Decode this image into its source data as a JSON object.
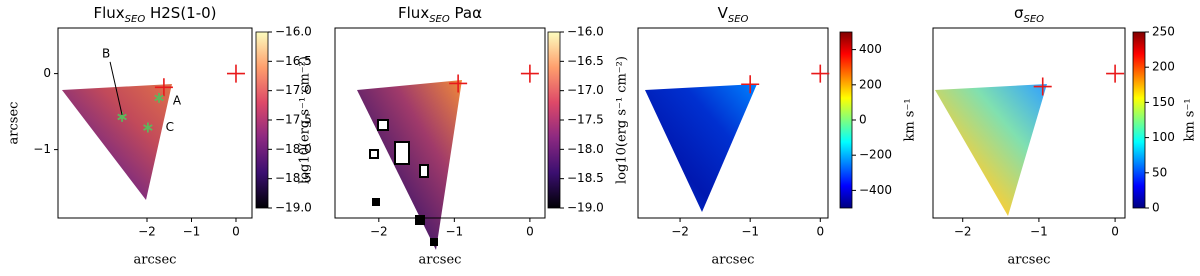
{
  "chart_data": [
    {
      "type": "heatmap",
      "title": "Flux",
      "title_sub": "SEO",
      "title_suffix": " H2S(1-0)",
      "xlabel": "arcsec",
      "ylabel": "arcsec",
      "xlim": [
        -4.0,
        0.36
      ],
      "ylim": [
        -1.9,
        0.6
      ],
      "xticks": [
        {
          "value": -2,
          "label": "−2"
        },
        {
          "value": -1,
          "label": "−1"
        },
        0
      ],
      "yticks": [
        {
          "value": -1,
          "label": "−1"
        },
        0
      ],
      "colorbar": {
        "clim": [
          -19.0,
          -16.0
        ],
        "label": "log10(erg s⁻¹ cm⁻²)",
        "ticks": [
          {
            "value": -16.0,
            "label": "−16.0"
          },
          {
            "value": -16.5,
            "label": "−16.5"
          },
          {
            "value": -17.0,
            "label": "−17.0"
          },
          {
            "value": -17.5,
            "label": "−17.5"
          },
          {
            "value": -18.0,
            "label": "−18.0"
          },
          {
            "value": -18.5,
            "label": "−18.5"
          },
          {
            "value": -19.0,
            "label": "−19.0"
          }
        ],
        "colors": [
          "#000004",
          "#3b0f70",
          "#8c2981",
          "#de4968",
          "#fe9f6d",
          "#fcfdbf"
        ]
      },
      "map_colors": [
        "#5a1a78",
        "#7a2a80",
        "#c24a5a",
        "#e0704a"
      ],
      "markers": [
        {
          "x": 0,
          "y": 0
        },
        {
          "x": -1.62,
          "y": -0.18
        }
      ],
      "marker_color": "#e8191a",
      "stars": [
        {
          "x": -1.73,
          "y": -0.32,
          "label": "A"
        },
        {
          "x": -2.56,
          "y": -0.57,
          "label": "B"
        },
        {
          "x": -1.98,
          "y": -0.71,
          "label": "C"
        }
      ],
      "star_color": "#5cb85c"
    },
    {
      "type": "heatmap",
      "title": "Flux",
      "title_sub": "SEO",
      "title_suffix": " Paα",
      "xlabel": "arcsec",
      "xlim": [
        -2.58,
        0.2
      ],
      "ylim": [
        -1.9,
        0.6
      ],
      "xticks": [
        {
          "value": -2,
          "label": "−2"
        },
        {
          "value": -1,
          "label": "−1"
        },
        0
      ],
      "colorbar": {
        "clim": [
          -19.0,
          -16.0
        ],
        "label": "log10(erg s⁻¹ cm⁻²)",
        "ticks": [
          {
            "value": -16.0,
            "label": "−16.0"
          },
          {
            "value": -16.5,
            "label": "−16.5"
          },
          {
            "value": -17.0,
            "label": "−17.0"
          },
          {
            "value": -17.5,
            "label": "−17.5"
          },
          {
            "value": -18.0,
            "label": "−18.0"
          },
          {
            "value": -18.5,
            "label": "−18.5"
          },
          {
            "value": -19.0,
            "label": "−19.0"
          }
        ],
        "colors": [
          "#000004",
          "#3b0f70",
          "#8c2981",
          "#de4968",
          "#fe9f6d",
          "#fcfdbf"
        ]
      },
      "map_colors": [
        "#2a0c4a",
        "#4a1a6a",
        "#a03a6a",
        "#f08a3a"
      ],
      "markers": [
        {
          "x": 0,
          "y": 0
        },
        {
          "x": -0.95,
          "y": -0.13
        }
      ],
      "marker_color": "#e8191a"
    },
    {
      "type": "heatmap",
      "title": "V",
      "title_sub": "SEO",
      "xlabel": "arcsec",
      "xlim": [
        -2.6,
        0.11
      ],
      "ylim": [
        -1.9,
        0.6
      ],
      "xticks": [
        {
          "value": -2,
          "label": "−2"
        },
        {
          "value": -1,
          "label": "−1"
        },
        0
      ],
      "colorbar": {
        "clim": [
          -500,
          500
        ],
        "label": "km s⁻¹",
        "ticks": [
          {
            "value": -400,
            "label": "−400"
          },
          {
            "value": -200,
            "label": "−200"
          },
          0,
          200,
          400
        ],
        "colors": [
          "#00007f",
          "#0000ff",
          "#007fff",
          "#00ffff",
          "#7fff7f",
          "#ffff00",
          "#ff7f00",
          "#ff0000",
          "#7f0000"
        ]
      },
      "map_colors": [
        "#0040e0",
        "#0018b0",
        "#0030d0",
        "#0080ff"
      ],
      "markers": [
        {
          "x": 0,
          "y": 0
        },
        {
          "x": -1.0,
          "y": -0.14
        }
      ],
      "marker_color": "#e8191a"
    },
    {
      "type": "heatmap",
      "title": "σ",
      "title_sub": "SEO",
      "xlabel": "arcsec",
      "xlim": [
        -2.39,
        0.13
      ],
      "ylim": [
        -1.9,
        0.6
      ],
      "xticks": [
        {
          "value": -2,
          "label": "−2"
        },
        {
          "value": -1,
          "label": "−1"
        },
        0
      ],
      "colorbar": {
        "clim": [
          0,
          250
        ],
        "label": "km s⁻¹",
        "ticks": [
          0,
          50,
          100,
          150,
          200,
          250
        ],
        "colors": [
          "#00007f",
          "#0000ff",
          "#007fff",
          "#00ffff",
          "#7fff7f",
          "#ffff00",
          "#ff7f00",
          "#ff0000",
          "#7f0000"
        ]
      },
      "map_colors": [
        "#40d0ff",
        "#f0d040",
        "#80e0b0",
        "#30a0ff"
      ],
      "markers": [
        {
          "x": 0,
          "y": 0
        },
        {
          "x": -0.95,
          "y": -0.17
        }
      ],
      "marker_color": "#e8191a"
    }
  ]
}
